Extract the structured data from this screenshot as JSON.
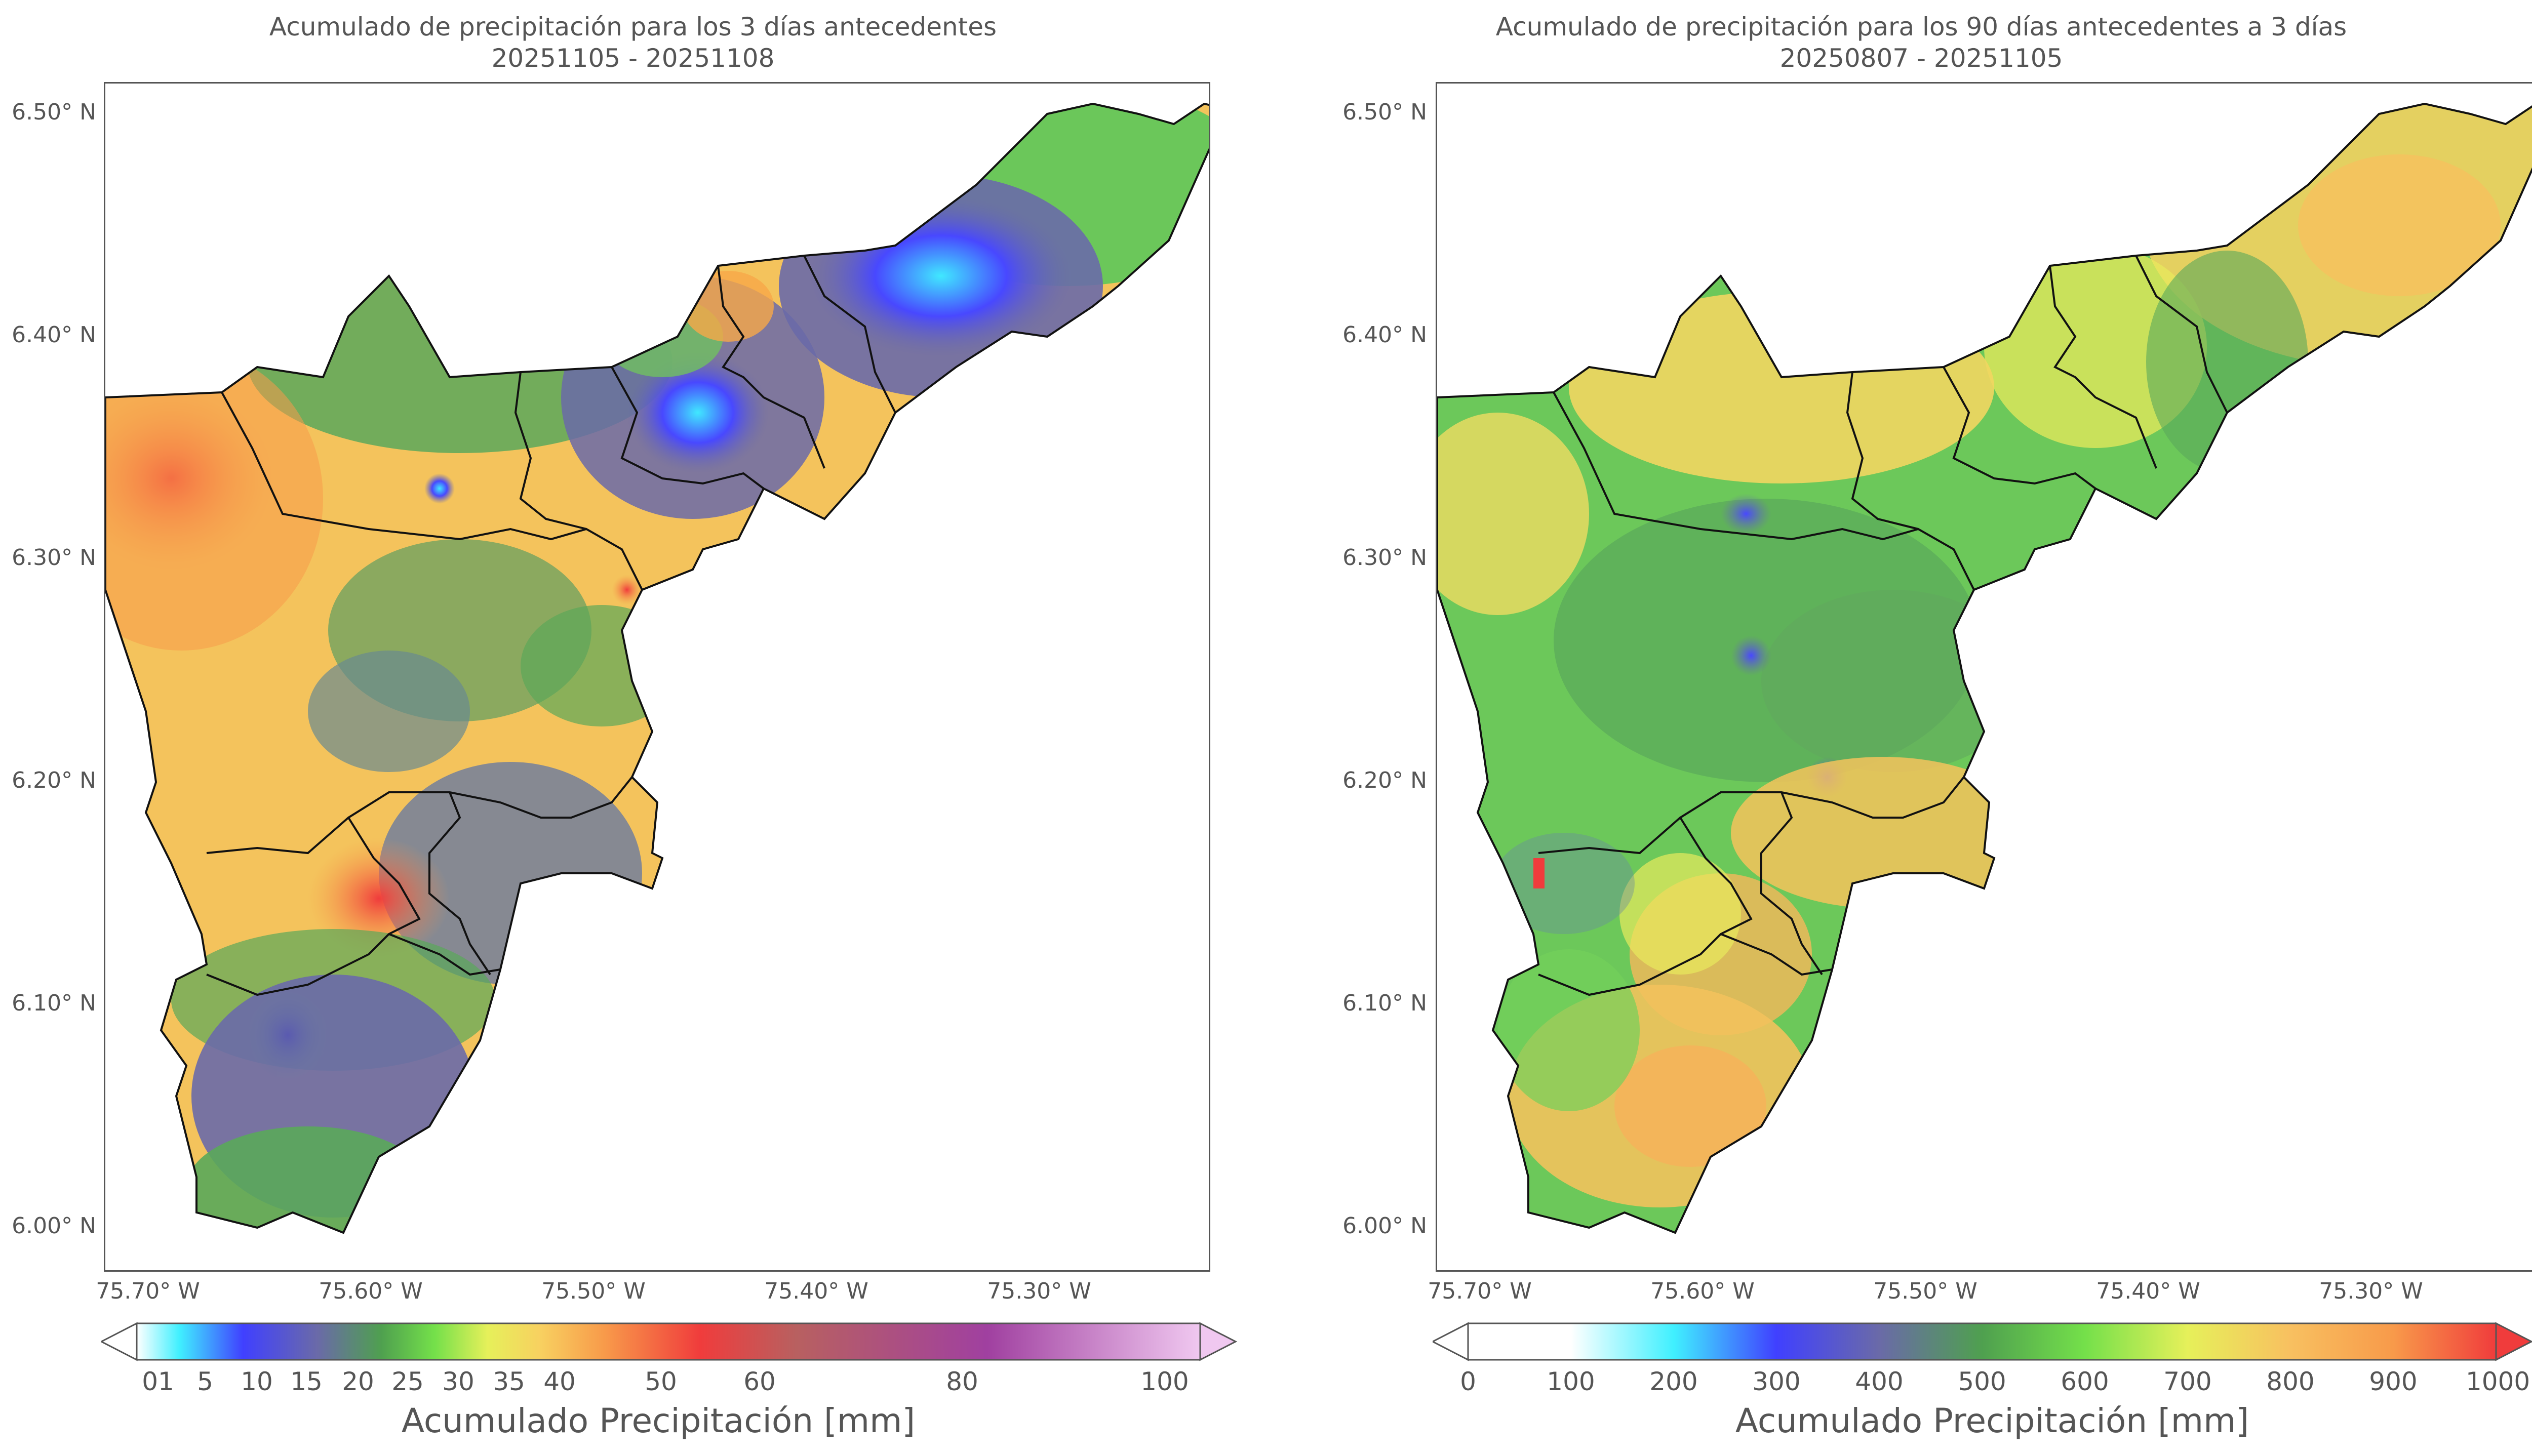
{
  "left": {
    "title_line1": "Acumulado de precipitación para los 3 días antecedentes",
    "title_line2": "20251105 - 20251108",
    "y_ticks": [
      "6.50° N",
      "6.40° N",
      "6.30° N",
      "6.20° N",
      "6.10° N",
      "6.00° N"
    ],
    "x_ticks": [
      "75.70° W",
      "75.60° W",
      "75.50° W",
      "75.40° W",
      "75.30° W"
    ],
    "colorbar_ticks": [
      "01",
      "5",
      "10",
      "15",
      "20",
      "25",
      "30",
      "35",
      "40",
      "50",
      "60",
      "80",
      "100"
    ],
    "colorbar_label": "Acumulado Precipitación [mm]",
    "colorbar_colors": [
      "#ffffff",
      "#40f0ff",
      "#4040ff",
      "#6a6aa8",
      "#4fa04f",
      "#74e04a",
      "#e6f05a",
      "#f8d060",
      "#f89a4a",
      "#f03c3c",
      "#b86060",
      "#a040a0",
      "#f0c8f0"
    ]
  },
  "right": {
    "title_line1": "Acumulado de precipitación para los 90 días antecedentes a 3 días",
    "title_line2": "20250807 - 20251105",
    "y_ticks": [
      "6.50° N",
      "6.40° N",
      "6.30° N",
      "6.20° N",
      "6.10° N",
      "6.00° N"
    ],
    "x_ticks": [
      "75.70° W",
      "75.60° W",
      "75.50° W",
      "75.40° W",
      "75.30° W"
    ],
    "colorbar_ticks": [
      "0",
      "100",
      "200",
      "300",
      "400",
      "500",
      "600",
      "700",
      "800",
      "900",
      "1000"
    ],
    "colorbar_label": "Acumulado Precipitación [mm]",
    "colorbar_colors": [
      "#ffffff",
      "#40f0ff",
      "#4040ff",
      "#6a6aa8",
      "#4fa04f",
      "#74e04a",
      "#e6f05a",
      "#f8c060",
      "#f89a4a",
      "#f03c3c"
    ]
  }
}
